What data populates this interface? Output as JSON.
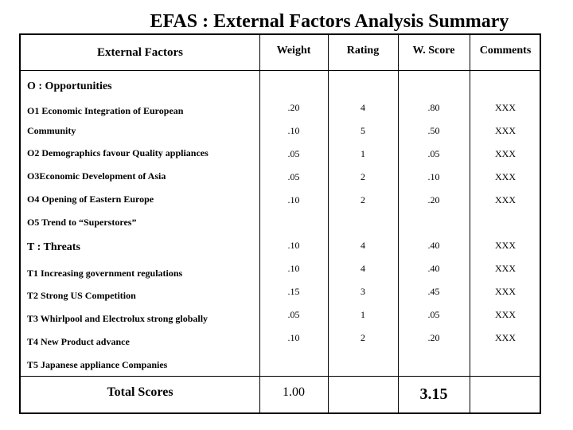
{
  "title": "EFAS : External Factors Analysis Summary",
  "headers": {
    "factors": "External Factors",
    "weight": "Weight",
    "rating": "Rating",
    "wscore": "W. Score",
    "comments": "Comments"
  },
  "opportunities": {
    "heading": "O : Opportunities",
    "lines": [
      "O1 Economic Integration of European",
      "Community",
      "O2 Demographics favour Quality appliances",
      "O3Economic Development of Asia",
      "O4 Opening of Eastern Europe",
      "O5 Trend to “Superstores”"
    ],
    "rows": [
      {
        "weight": ".20",
        "rating": "4",
        "wscore": ".80",
        "comment": "XXX"
      },
      {
        "weight": ".10",
        "rating": "5",
        "wscore": ".50",
        "comment": "XXX"
      },
      {
        "weight": ".05",
        "rating": "1",
        "wscore": ".05",
        "comment": "XXX"
      },
      {
        "weight": ".05",
        "rating": "2",
        "wscore": ".10",
        "comment": "XXX"
      },
      {
        "weight": ".10",
        "rating": "2",
        "wscore": ".20",
        "comment": "XXX"
      }
    ]
  },
  "threats": {
    "heading": "T : Threats",
    "lines": [
      "T1 Increasing government regulations",
      "T2 Strong US Competition",
      "T3 Whirlpool and Electrolux strong globally",
      "T4 New Product advance",
      "T5 Japanese appliance Companies"
    ],
    "rows": [
      {
        "weight": ".10",
        "rating": "4",
        "wscore": ".40",
        "comment": "XXX"
      },
      {
        "weight": ".10",
        "rating": "4",
        "wscore": ".40",
        "comment": "XXX"
      },
      {
        "weight": ".15",
        "rating": "3",
        "wscore": ".45",
        "comment": "XXX"
      },
      {
        "weight": ".05",
        "rating": "1",
        "wscore": ".05",
        "comment": "XXX"
      },
      {
        "weight": ".10",
        "rating": "2",
        "wscore": ".20",
        "comment": "XXX"
      }
    ]
  },
  "totals": {
    "label": "Total Scores",
    "weight": "1.00",
    "wscore": "3.15"
  }
}
